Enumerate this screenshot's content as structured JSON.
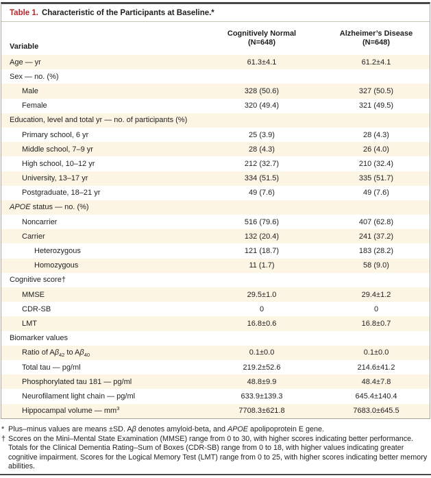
{
  "table": {
    "label": "Table 1.",
    "title": "Characteristic of the Participants at Baseline.*",
    "columns": {
      "variable": "Variable",
      "cn": [
        "Cognitively Normal",
        "(N=648)"
      ],
      "ad": [
        "Alzheimer’s Disease",
        "(N=648)"
      ]
    },
    "rows": [
      {
        "label": "Age — yr",
        "indent": 0,
        "cn": "61.3±4.1",
        "ad": "61.2±4.1"
      },
      {
        "label": "Sex — no. (%)",
        "indent": 0,
        "cn": "",
        "ad": ""
      },
      {
        "label": "Male",
        "indent": 1,
        "cn": "328 (50.6)",
        "ad": "327 (50.5)"
      },
      {
        "label": "Female",
        "indent": 1,
        "cn": "320 (49.4)",
        "ad": "321 (49.5)"
      },
      {
        "label": "Education, level and total yr — no. of participants (%)",
        "indent": 0,
        "cn": "",
        "ad": ""
      },
      {
        "label": "Primary school, 6 yr",
        "indent": 1,
        "cn": "25 (3.9)",
        "ad": "28 (4.3)"
      },
      {
        "label": "Middle school, 7–9 yr",
        "indent": 1,
        "cn": "28 (4.3)",
        "ad": "26 (4.0)"
      },
      {
        "label": "High school, 10–12 yr",
        "indent": 1,
        "cn": "212 (32.7)",
        "ad": "210 (32.4)"
      },
      {
        "label": "University, 13–17 yr",
        "indent": 1,
        "cn": "334 (51.5)",
        "ad": "335 (51.7)"
      },
      {
        "label": "Postgraduate, 18–21 yr",
        "indent": 1,
        "cn": "49 (7.6)",
        "ad": "49 (7.6)"
      },
      {
        "label": "<i>APOE</i> status — no. (%)",
        "indent": 0,
        "cn": "",
        "ad": ""
      },
      {
        "label": "Noncarrier",
        "indent": 1,
        "cn": "516 (79.6)",
        "ad": "407 (62.8)"
      },
      {
        "label": "Carrier",
        "indent": 1,
        "cn": "132 (20.4)",
        "ad": "241 (37.2)"
      },
      {
        "label": "Heterozygous",
        "indent": 2,
        "cn": "121 (18.7)",
        "ad": "183 (28.2)"
      },
      {
        "label": "Homozygous",
        "indent": 2,
        "cn": "11 (1.7)",
        "ad": "58 (9.0)"
      },
      {
        "label": "Cognitive score†",
        "indent": 0,
        "cn": "",
        "ad": ""
      },
      {
        "label": "MMSE",
        "indent": 1,
        "cn": "29.5±1.0",
        "ad": "29.4±1.2"
      },
      {
        "label": "CDR-SB",
        "indent": 1,
        "cn": "0",
        "ad": "0"
      },
      {
        "label": "LMT",
        "indent": 1,
        "cn": "16.8±0.6",
        "ad": "16.8±0.7"
      },
      {
        "label": "Biomarker values",
        "indent": 0,
        "cn": "",
        "ad": ""
      },
      {
        "label": "Ratio of A<i>β</i><sub>42</sub> to A<i>β</i><sub>40</sub>",
        "indent": 1,
        "cn": "0.1±0.0",
        "ad": "0.1±0.0"
      },
      {
        "label": "Total tau — pg/ml",
        "indent": 1,
        "cn": "219.2±52.6",
        "ad": "214.6±41.2"
      },
      {
        "label": "Phosphorylated tau 181 — pg/ml",
        "indent": 1,
        "cn": "48.8±9.9",
        "ad": "48.4±7.8"
      },
      {
        "label": "Neurofilament light chain — pg/ml",
        "indent": 1,
        "cn": "633.9±139.3",
        "ad": "645.4±140.4"
      },
      {
        "label": "Hippocampal volume — mm<sup>3</sup>",
        "indent": 1,
        "cn": "7708.3±621.8",
        "ad": "7683.0±645.5"
      }
    ]
  },
  "footnotes": [
    {
      "marker": "*",
      "html": "Plus–minus values are means ±SD. A<i>β</i> denotes amyloid-beta, and <i>APOE</i> apolipoprotein E gene."
    },
    {
      "marker": "†",
      "html": "Scores on the Mini–Mental State Examination (MMSE) range from 0 to 30, with higher scores indicating better performance. Totals for the Clinical Dementia Rating–Sum of Boxes (CDR-SB) range from 0 to 18, with higher values indicating greater cognitive impairment. Scores for the Logical Memory Test (LMT) range from 0 to 25, with higher scores indicating better memory abilities."
    }
  ],
  "colors": {
    "accent_red": "#b9252b",
    "row_stripe_cream": "#fcf5e4",
    "rule_dark": "#474645",
    "border_gray": "#aaa59a"
  }
}
